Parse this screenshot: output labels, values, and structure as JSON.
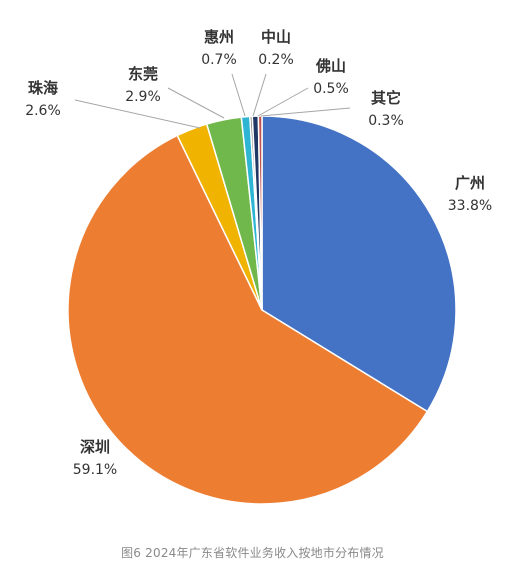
{
  "chart_data": {
    "type": "pie",
    "categories": [
      "广州",
      "深圳",
      "珠海",
      "东莞",
      "惠州",
      "中山",
      "佛山",
      "其它"
    ],
    "values": [
      33.8,
      59.1,
      2.6,
      2.9,
      0.7,
      0.2,
      0.5,
      0.3
    ],
    "value_labels": [
      "33.8%",
      "59.1%",
      "2.6%",
      "2.9%",
      "0.7%",
      "0.2%",
      "0.5%",
      "0.3%"
    ],
    "colors": [
      "#4472C4",
      "#ED7D31",
      "#F0B400",
      "#70B84C",
      "#2EB5D4",
      "#7F7F7F",
      "#203864",
      "#C0504D"
    ],
    "slice_order_clockwise_from_top": [
      "广州",
      "深圳",
      "珠海",
      "东莞",
      "惠州",
      "中山",
      "佛山",
      "其它"
    ]
  },
  "caption": "图6 2024年广东省软件业务收入按地市分布情况"
}
